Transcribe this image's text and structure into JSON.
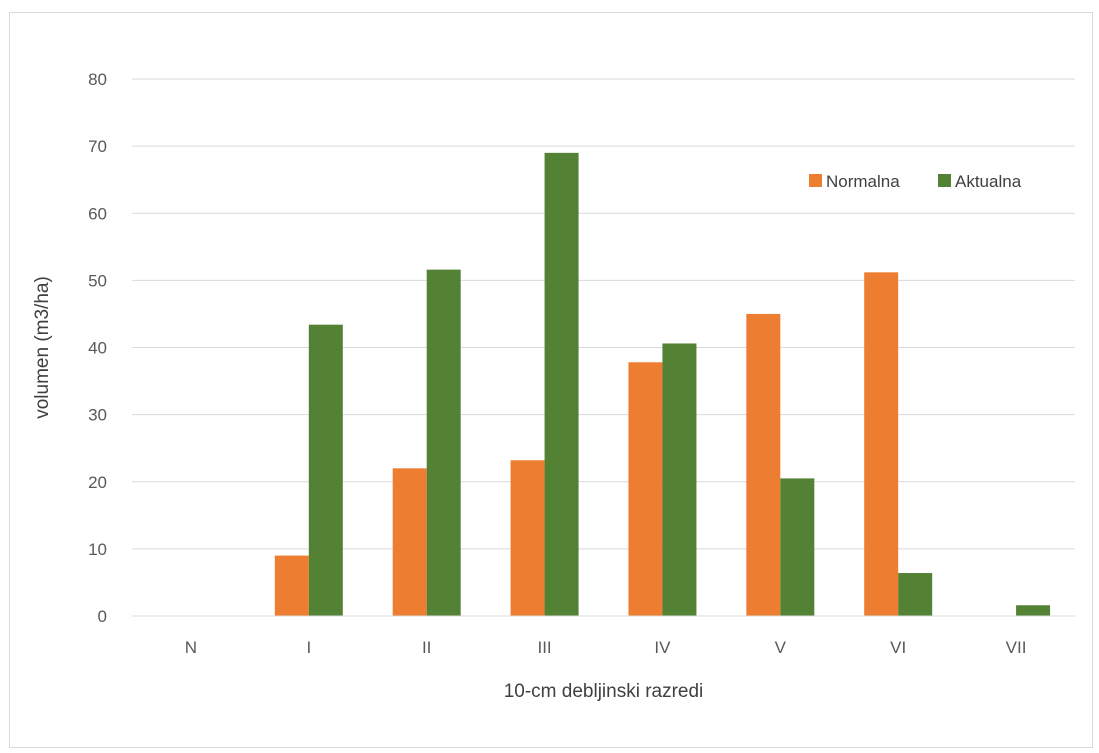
{
  "chart_data": {
    "type": "bar",
    "title": "",
    "xlabel": "10-cm debljinski razredi",
    "ylabel": "volumen (m3/ha)",
    "categories": [
      "N",
      "I",
      "II",
      "III",
      "IV",
      "V",
      "VI",
      "VII"
    ],
    "series": [
      {
        "name": "Normalna",
        "color": "#ed7d31",
        "values": [
          0,
          9,
          22,
          23.2,
          37.8,
          45,
          51.2,
          0
        ]
      },
      {
        "name": "Aktualna",
        "color": "#548235",
        "values": [
          0,
          43.4,
          51.6,
          69,
          40.6,
          20.5,
          6.4,
          1.6
        ]
      }
    ],
    "ylim": [
      0,
      80
    ],
    "yticks": [
      0,
      10,
      20,
      30,
      40,
      50,
      60,
      70,
      80
    ],
    "grid": true,
    "legend_position": "top-right"
  }
}
